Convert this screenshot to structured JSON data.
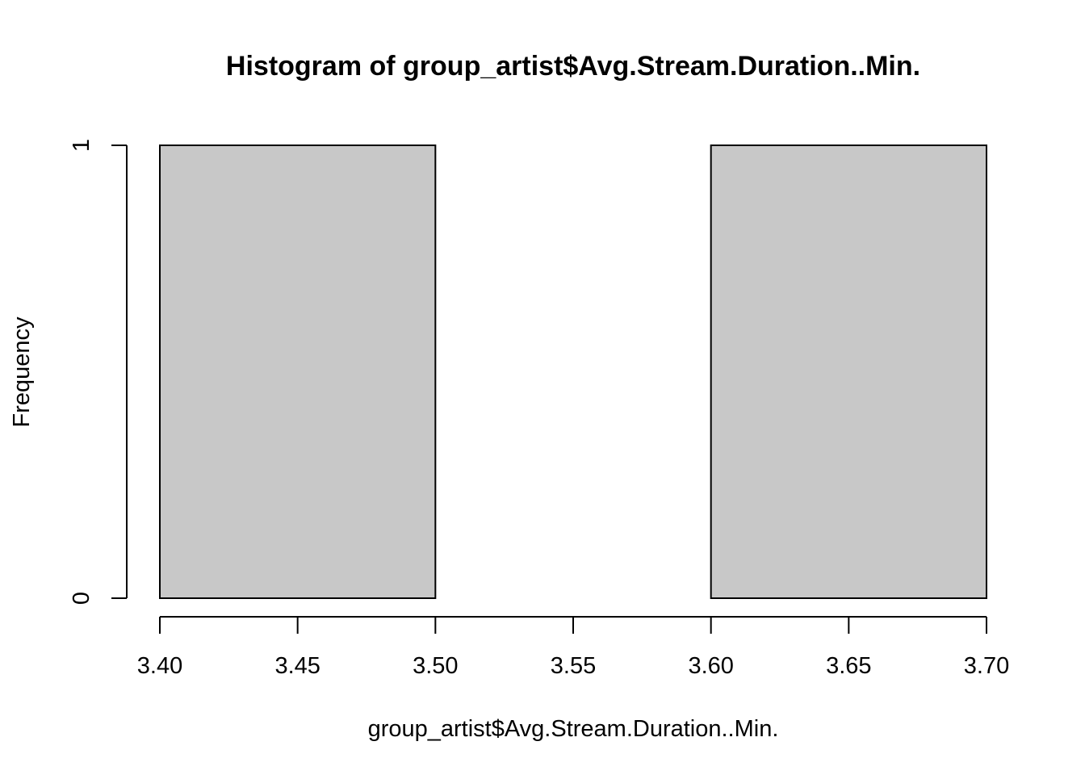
{
  "chart_data": {
    "type": "bar",
    "subtype": "histogram",
    "title": "Histogram of group_artist$Avg.Stream.Duration..Min.",
    "xlabel": "group_artist$Avg.Stream.Duration..Min.",
    "ylabel": "Frequency",
    "bins": [
      {
        "start": 3.4,
        "end": 3.5,
        "count": 1
      },
      {
        "start": 3.5,
        "end": 3.6,
        "count": 0
      },
      {
        "start": 3.6,
        "end": 3.7,
        "count": 1
      }
    ],
    "x_ticks": [
      "3.40",
      "3.45",
      "3.50",
      "3.55",
      "3.60",
      "3.65",
      "3.70"
    ],
    "y_ticks": [
      "0",
      "1"
    ],
    "xlim": [
      3.4,
      3.7
    ],
    "ylim": [
      0,
      1
    ],
    "grid": false,
    "colors": {
      "bar_fill": "#c8c8c8",
      "bar_stroke": "#000000"
    }
  }
}
